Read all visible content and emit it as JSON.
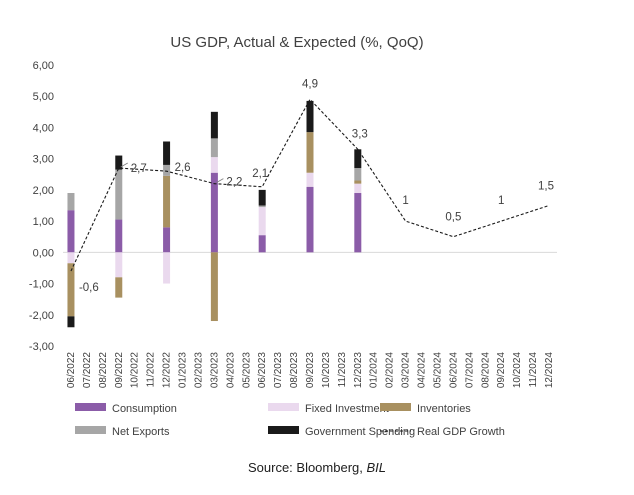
{
  "chart_data": {
    "type": "bar",
    "title": "US GDP, Actual & Expected (%, QoQ)",
    "xlabel": "",
    "ylabel": "",
    "ylim": [
      -3,
      6
    ],
    "y_ticks": [
      -3,
      -2,
      -1,
      0,
      1,
      2,
      3,
      4,
      5,
      6
    ],
    "y_tick_labels": [
      "-3,00",
      "-2,00",
      "-1,00",
      "0,00",
      "1,00",
      "2,00",
      "3,00",
      "4,00",
      "5,00",
      "6,00"
    ],
    "categories": [
      "06/2022",
      "07/2022",
      "08/2022",
      "09/2022",
      "10/2022",
      "11/2022",
      "12/2022",
      "01/2023",
      "02/2023",
      "03/2023",
      "04/2023",
      "05/2023",
      "06/2023",
      "07/2023",
      "08/2023",
      "09/2023",
      "10/2023",
      "11/2023",
      "12/2023",
      "01/2024",
      "02/2024",
      "03/2024",
      "04/2024",
      "05/2024",
      "06/2024",
      "07/2024",
      "08/2024",
      "09/2024",
      "10/2024",
      "11/2024",
      "12/2024"
    ],
    "stacked": true,
    "series": [
      {
        "name": "Consumption",
        "color": "#8B5CA8",
        "values": [
          1.35,
          null,
          null,
          1.05,
          null,
          null,
          0.8,
          null,
          null,
          2.55,
          null,
          null,
          0.55,
          null,
          null,
          2.1,
          null,
          null,
          1.9,
          null,
          null,
          null,
          null,
          null,
          null,
          null,
          null,
          null,
          null,
          null,
          null
        ]
      },
      {
        "name": "Fixed Investment",
        "color": "#EAD9EE",
        "values": [
          -0.35,
          null,
          null,
          -0.8,
          null,
          null,
          -1.0,
          null,
          null,
          0.5,
          null,
          null,
          0.9,
          null,
          null,
          0.45,
          null,
          null,
          0.3,
          null,
          null,
          null,
          null,
          null,
          null,
          null,
          null,
          null,
          null,
          null,
          null
        ]
      },
      {
        "name": "Inventories",
        "color": "#A89060",
        "values": [
          -1.7,
          null,
          null,
          -0.65,
          null,
          null,
          1.65,
          null,
          null,
          -2.2,
          null,
          null,
          0.0,
          null,
          null,
          1.3,
          null,
          null,
          0.1,
          null,
          null,
          null,
          null,
          null,
          null,
          null,
          null,
          null,
          null,
          null,
          null
        ]
      },
      {
        "name": "Net Exports",
        "color": "#A6A6A6",
        "values": [
          0.55,
          null,
          null,
          1.6,
          null,
          null,
          0.35,
          null,
          null,
          0.6,
          null,
          null,
          0.05,
          null,
          null,
          0.0,
          null,
          null,
          0.4,
          null,
          null,
          null,
          null,
          null,
          null,
          null,
          null,
          null,
          null,
          null,
          null
        ]
      },
      {
        "name": "Government Spending",
        "color": "#1A1A1A",
        "values": [
          -0.35,
          null,
          null,
          0.45,
          null,
          null,
          0.75,
          null,
          null,
          0.85,
          null,
          null,
          0.5,
          null,
          null,
          1.0,
          null,
          null,
          0.6,
          null,
          null,
          null,
          null,
          null,
          null,
          null,
          null,
          null,
          null,
          null,
          null
        ]
      }
    ],
    "line_series": {
      "name": "Real GDP Growth",
      "color": "#1A1A1A",
      "style": "dashed",
      "points": [
        {
          "x": "06/2022",
          "y": -0.6,
          "label": "-0,6"
        },
        {
          "x": "09/2022",
          "y": 2.7,
          "label": "2,7"
        },
        {
          "x": "12/2022",
          "y": 2.6,
          "label": "2,6"
        },
        {
          "x": "03/2023",
          "y": 2.2,
          "label": "2,2"
        },
        {
          "x": "06/2023",
          "y": 2.1,
          "label": "2,1"
        },
        {
          "x": "09/2023",
          "y": 4.9,
          "label": "4,9"
        },
        {
          "x": "12/2023",
          "y": 3.3,
          "label": "3,3"
        },
        {
          "x": "03/2024",
          "y": 1.0,
          "label": "1"
        },
        {
          "x": "06/2024",
          "y": 0.5,
          "label": "0,5"
        },
        {
          "x": "09/2024",
          "y": 1.0,
          "label": "1"
        },
        {
          "x": "12/2024",
          "y": 1.5,
          "label": "1,5"
        }
      ]
    },
    "legend": {
      "position": "bottom",
      "items": [
        {
          "name": "Consumption",
          "kind": "bar",
          "color": "#8B5CA8"
        },
        {
          "name": "Fixed Investment",
          "kind": "bar",
          "color": "#EAD9EE"
        },
        {
          "name": "Inventories",
          "kind": "bar",
          "color": "#A89060"
        },
        {
          "name": "Net Exports",
          "kind": "bar",
          "color": "#A6A6A6"
        },
        {
          "name": "Government Spending",
          "kind": "bar",
          "color": "#1A1A1A"
        },
        {
          "name": "Real GDP Growth",
          "kind": "dashed-line",
          "color": "#1A1A1A"
        }
      ]
    },
    "grid": false
  },
  "source": {
    "prefix": "Source: Bloomberg, ",
    "italic": "BIL"
  }
}
